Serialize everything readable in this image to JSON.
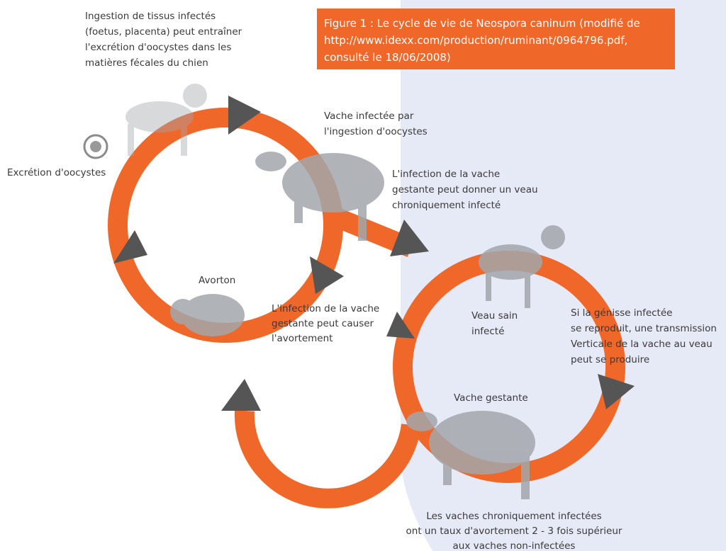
{
  "caption": {
    "lines": [
      "Figure 1 : Le cycle de vie de Neospora caninum (modifié de",
      "http://www.idexx.com/production/ruminant/0964796.pdf,",
      "consulté le 18/06/2008)"
    ]
  },
  "labels": {
    "ingestion": [
      "Ingestion de tissus infectés",
      "(foetus, placenta) peut entraîner",
      "l'excrétion d'oocystes dans les",
      "matières fécales du chien"
    ],
    "excretion": [
      "Excrétion d'oocystes"
    ],
    "cow_infected": [
      "Vache infectée par",
      "l'ingestion d'oocystes"
    ],
    "pregnant_calf": [
      "L'infection de la vache",
      "gestante peut donner un veau",
      "chroniquement infecté"
    ],
    "avorton": [
      "Avorton"
    ],
    "abortion": [
      "L'infection de la vache",
      "gestante peut causer",
      "l'avortement"
    ],
    "calf": [
      "Veau sain",
      "infecté"
    ],
    "heifer": [
      "Si la génisse infectée",
      "se reproduit, une transmission",
      "Verticale de la vache au veau",
      "peut se produire"
    ],
    "pregnant_cow": [
      "Vache gestante"
    ],
    "chronic": [
      "Les vaches chroniquement infectées",
      "ont un taux d'avortement 2 - 3 fois supérieur",
      "aux vaches non-infectées"
    ]
  }
}
